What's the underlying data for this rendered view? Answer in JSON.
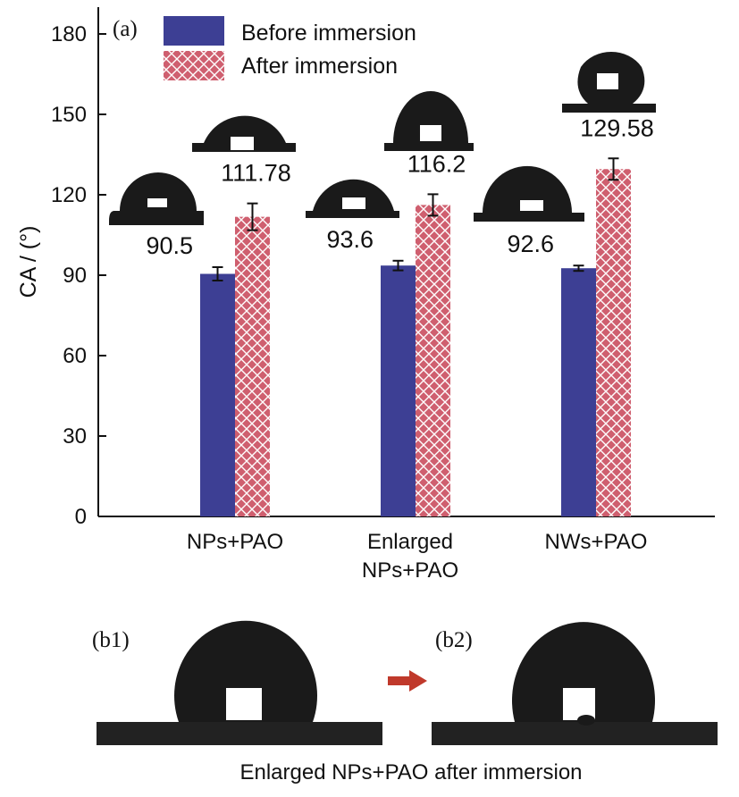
{
  "chart_data": {
    "type": "bar",
    "panel_label": "(a)",
    "ylabel": "CA / (°)",
    "ylim": [
      0,
      180
    ],
    "yticks": [
      0,
      30,
      60,
      90,
      120,
      150,
      180
    ],
    "categories": [
      [
        "NPs+PAO"
      ],
      [
        "Enlarged",
        "NPs+PAO"
      ],
      [
        "NWs+PAO"
      ]
    ],
    "series": [
      {
        "name": "Before immersion",
        "values": [
          90.5,
          93.6,
          92.6
        ],
        "errors": [
          2.5,
          1.8,
          1.0
        ],
        "labels": [
          "90.5",
          "93.6",
          "92.6"
        ],
        "color": "#3d3f94"
      },
      {
        "name": "After immersion",
        "values": [
          111.78,
          116.2,
          129.58
        ],
        "errors": [
          5.0,
          4.0,
          4.0
        ],
        "labels": [
          "111.78",
          "116.2",
          "129.58"
        ],
        "color": "#cf5f6f"
      }
    ],
    "legend_position": "top-center",
    "grid": false
  },
  "photos": {
    "b1_label": "(b1)",
    "b2_label": "(b2)",
    "caption": "Enlarged NPs+PAO after immersion",
    "arrow_color": "#c0392b"
  }
}
